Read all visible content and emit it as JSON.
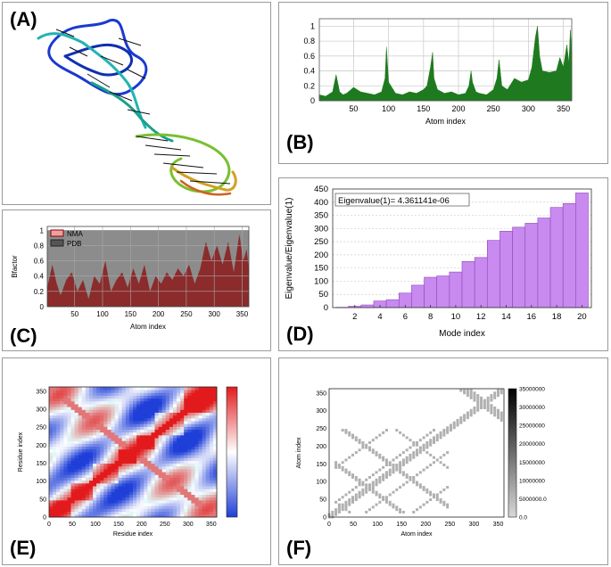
{
  "panel_labels": {
    "a": "(A)",
    "b": "(B)",
    "c": "(C)",
    "d": "(D)",
    "e": "(E)",
    "f": "(F)"
  },
  "colors": {
    "panel_b_fill": "#1f7a1f",
    "panel_c_nma": "#8b1a1a",
    "panel_c_pdb": "#8c8c8c",
    "panel_d_bar": "#c98af0",
    "panel_d_edge": "#8a4ab8",
    "heatmap_pos": "#e31a1c",
    "heatmap_neg": "#1f3fd8",
    "gray_map": "#b0b0b0"
  },
  "chart_data": [
    {
      "id": "B",
      "type": "area",
      "xlabel": "Atom index",
      "ylabel": "",
      "xlim": [
        1,
        362
      ],
      "ylim": [
        0,
        1.1
      ],
      "xticks": [
        "50",
        "100",
        "150",
        "200",
        "250",
        "300",
        "350"
      ],
      "yticks": [
        "0",
        "0.2",
        "0.4",
        "0.6",
        "0.8",
        "1"
      ],
      "grid": true,
      "x": [
        1,
        10,
        20,
        25,
        30,
        35,
        40,
        50,
        60,
        70,
        80,
        90,
        95,
        97,
        100,
        110,
        120,
        130,
        140,
        150,
        155,
        160,
        163,
        165,
        170,
        180,
        190,
        200,
        210,
        215,
        218,
        220,
        225,
        230,
        240,
        250,
        255,
        258,
        262,
        270,
        280,
        290,
        300,
        305,
        310,
        313,
        316,
        320,
        330,
        340,
        345,
        350,
        355,
        358,
        360,
        362
      ],
      "y": [
        0.08,
        0.06,
        0.12,
        0.35,
        0.12,
        0.08,
        0.1,
        0.18,
        0.12,
        0.1,
        0.08,
        0.12,
        0.3,
        0.72,
        0.25,
        0.1,
        0.08,
        0.12,
        0.1,
        0.15,
        0.2,
        0.45,
        0.65,
        0.3,
        0.15,
        0.1,
        0.12,
        0.08,
        0.1,
        0.2,
        0.4,
        0.25,
        0.12,
        0.1,
        0.08,
        0.15,
        0.3,
        0.55,
        0.2,
        0.15,
        0.3,
        0.25,
        0.28,
        0.45,
        0.85,
        1.0,
        0.6,
        0.4,
        0.38,
        0.4,
        0.58,
        0.45,
        0.75,
        0.5,
        0.95,
        0.65
      ]
    },
    {
      "id": "C",
      "type": "area",
      "xlabel": "Atom index",
      "ylabel": "Bfactor",
      "xlim": [
        1,
        362
      ],
      "ylim": [
        0,
        1.05
      ],
      "xticks": [
        "50",
        "100",
        "150",
        "200",
        "250",
        "300",
        "350"
      ],
      "yticks": [
        "0",
        "0.2",
        "0.4",
        "0.6",
        "0.8",
        "1"
      ],
      "legend": {
        "position": "top-left",
        "entries": [
          "NMA",
          "PDB"
        ]
      },
      "series": [
        {
          "name": "PDB",
          "constant": 1.0
        },
        {
          "name": "NMA",
          "x": [
            1,
            10,
            18,
            25,
            35,
            45,
            55,
            65,
            75,
            85,
            95,
            105,
            115,
            125,
            135,
            145,
            155,
            165,
            175,
            185,
            195,
            205,
            215,
            225,
            235,
            245,
            255,
            265,
            275,
            285,
            295,
            305,
            315,
            325,
            335,
            345,
            352,
            358,
            362
          ],
          "y": [
            0.25,
            0.55,
            0.3,
            0.15,
            0.35,
            0.45,
            0.2,
            0.35,
            0.1,
            0.4,
            0.3,
            0.6,
            0.2,
            0.35,
            0.45,
            0.25,
            0.5,
            0.3,
            0.55,
            0.2,
            0.4,
            0.3,
            0.45,
            0.35,
            0.5,
            0.4,
            0.55,
            0.3,
            0.5,
            0.85,
            0.6,
            0.8,
            0.55,
            0.85,
            0.45,
            0.95,
            0.6,
            0.75,
            0.5
          ]
        }
      ]
    },
    {
      "id": "D",
      "type": "bar",
      "xlabel": "Mode index",
      "ylabel": "Eigenvalue/Eigenvalue(1)",
      "annotation": "Eigenvalue(1)= 4.361141e-06",
      "categories": [
        "1",
        "2",
        "3",
        "4",
        "5",
        "6",
        "7",
        "8",
        "9",
        "10",
        "11",
        "12",
        "13",
        "14",
        "15",
        "16",
        "17",
        "18",
        "19",
        "20"
      ],
      "values": [
        1,
        5,
        10,
        25,
        30,
        55,
        85,
        115,
        120,
        135,
        175,
        190,
        255,
        290,
        305,
        320,
        340,
        380,
        395,
        435
      ],
      "ylim": [
        0,
        450
      ],
      "xticks": [
        "2",
        "4",
        "6",
        "8",
        "10",
        "12",
        "14",
        "16",
        "18",
        "20"
      ],
      "yticks": [
        "0",
        "50",
        "100",
        "150",
        "200",
        "250",
        "300",
        "350",
        "400",
        "450"
      ],
      "grid": true
    },
    {
      "id": "E",
      "type": "heatmap",
      "xlabel": "Residue index",
      "ylabel": "Residue index",
      "xlim": [
        0,
        362
      ],
      "ylim": [
        0,
        362
      ],
      "xticks": [
        "0",
        "50",
        "100",
        "150",
        "200",
        "250",
        "300",
        "350"
      ],
      "yticks": [
        "0",
        "50",
        "100",
        "150",
        "200",
        "250",
        "300",
        "350"
      ],
      "colorbar": "red-white-blue"
    },
    {
      "id": "F",
      "type": "heatmap",
      "xlabel": "Atom index",
      "ylabel": "Atom index",
      "xlim": [
        0,
        362
      ],
      "ylim": [
        0,
        362
      ],
      "xticks": [
        "0",
        "50",
        "100",
        "150",
        "200",
        "250",
        "300",
        "350"
      ],
      "yticks": [
        "0",
        "50",
        "100",
        "150",
        "200",
        "250",
        "300",
        "350"
      ],
      "colorbar_ticks": [
        "0.0",
        "5000000.0",
        "10000000",
        "15000000",
        "20000000",
        "25000000",
        "30000000",
        "35000000"
      ]
    }
  ]
}
